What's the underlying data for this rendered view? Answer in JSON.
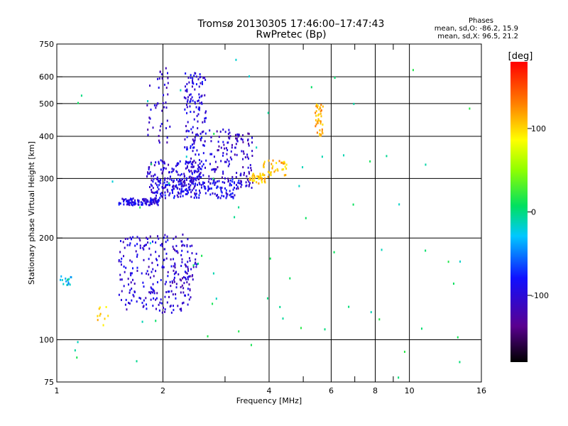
{
  "chart_data": {
    "type": "scatter",
    "title": "Tromsø 20130305 17:46:00–17:47:43",
    "subtitle": "RwPretec (Bp)",
    "xlabel": "Frequency [MHz]",
    "ylabel": "Stationary phase Virtual Height [km]",
    "x_scale": "log",
    "y_scale": "log",
    "xlim": [
      1,
      16
    ],
    "ylim": [
      75,
      750
    ],
    "x_ticks": [
      1,
      2,
      4,
      6,
      8,
      10,
      16
    ],
    "x_tick_labels": [
      "1",
      "2",
      "4",
      "6",
      "8",
      "10",
      "16"
    ],
    "x_minor_ticks": [
      3,
      5,
      7,
      9
    ],
    "y_ticks": [
      75,
      100,
      200,
      300,
      400,
      500,
      600,
      750
    ],
    "y_tick_labels": [
      "75",
      "100",
      "200",
      "300",
      "400",
      "500",
      "600",
      "750"
    ],
    "grid": true,
    "phases_box": {
      "heading": "Phases",
      "line_O": "mean, sd,O: -86.2, 15.9",
      "line_X": "mean, sd,X:  96.5, 21.2"
    },
    "colorbar": {
      "label": "[deg]",
      "range": [
        -180,
        180
      ],
      "ticks": [
        100,
        0,
        -100
      ],
      "tick_labels": [
        "100",
        "0",
        "-100"
      ]
    },
    "series": [
      {
        "color_by": "phase_deg",
        "clusters": [
          {
            "x": [
              1.5,
              1.95
            ],
            "y": [
              250,
              262
            ],
            "phase": -95,
            "n": 110
          },
          {
            "x": [
              1.9,
              3.3
            ],
            "y": [
              262,
              300
            ],
            "phase": -90,
            "n": 170
          },
          {
            "x": [
              1.8,
              2.6
            ],
            "y": [
              270,
              340
            ],
            "phase": -100,
            "n": 160
          },
          {
            "x": [
              2.3,
              2.65
            ],
            "y": [
              300,
              620
            ],
            "phase": -95,
            "n": 160
          },
          {
            "x": [
              1.8,
              2.1
            ],
            "y": [
              380,
              640
            ],
            "phase": -105,
            "n": 45
          },
          {
            "x": [
              2.7,
              3.2
            ],
            "y": [
              290,
              420
            ],
            "phase": -105,
            "n": 70
          },
          {
            "x": [
              3.2,
              3.6
            ],
            "y": [
              280,
              410
            ],
            "phase": -110,
            "n": 70
          },
          {
            "x": [
              3.5,
              3.9
            ],
            "y": [
              290,
              310
            ],
            "phase": 105,
            "n": 40
          },
          {
            "x": [
              3.8,
              4.5
            ],
            "y": [
              300,
              340
            ],
            "phase": 110,
            "n": 35
          },
          {
            "x": [
              5.4,
              5.7
            ],
            "y": [
              400,
              500
            ],
            "phase": 115,
            "n": 40
          },
          {
            "x": [
              1.5,
              2.4
            ],
            "y": [
              120,
              205
            ],
            "phase": -100,
            "n": 230
          },
          {
            "x": [
              2.1,
              2.5
            ],
            "y": [
              140,
              190
            ],
            "phase": -110,
            "n": 50
          },
          {
            "x": [
              1.02,
              1.1
            ],
            "y": [
              145,
              155
            ],
            "phase": -30,
            "n": 15
          },
          {
            "x": [
              1.3,
              1.4
            ],
            "y": [
              110,
              125
            ],
            "phase": 100,
            "n": 10
          },
          {
            "x": [
              1.0,
              16.0
            ],
            "y": [
              75,
              700
            ],
            "phase": 0,
            "n": 70
          }
        ]
      }
    ]
  }
}
